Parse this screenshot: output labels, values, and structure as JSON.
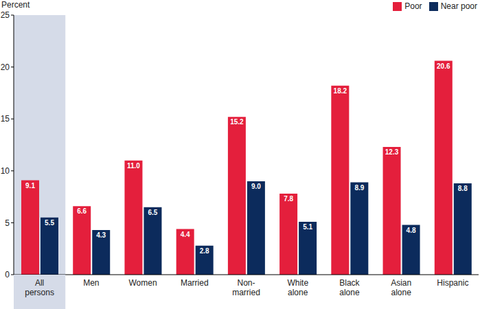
{
  "chart_data": {
    "type": "bar",
    "y_label": "Percent",
    "categories": [
      "All\npersons",
      "Men",
      "Women",
      "Married",
      "Non-\nmarried",
      "White\nalone",
      "Black\nalone",
      "Asian\nalone",
      "Hispanic"
    ],
    "series": [
      {
        "name": "Poor",
        "color": "#e41f3c",
        "values": [
          9.1,
          6.6,
          11.0,
          4.4,
          15.2,
          7.8,
          18.2,
          12.3,
          20.6
        ],
        "value_labels": [
          "9.1",
          "6.6",
          "11.0",
          "4.4",
          "15.2",
          "7.8",
          "18.2",
          "12.3",
          "20.6"
        ]
      },
      {
        "name": "Near poor",
        "color": "#0c2b5c",
        "values": [
          5.5,
          4.3,
          6.5,
          2.8,
          9.0,
          5.1,
          8.9,
          4.8,
          8.8
        ],
        "value_labels": [
          "5.5",
          "4.3",
          "6.5",
          "2.8",
          "9.0",
          "5.1",
          "8.9",
          "4.8",
          "8.8"
        ]
      }
    ],
    "ylim": [
      0,
      25
    ],
    "yticks": [
      0,
      5,
      10,
      15,
      20,
      25
    ],
    "grid": false,
    "legend": "upper right",
    "data_labels": true
  }
}
